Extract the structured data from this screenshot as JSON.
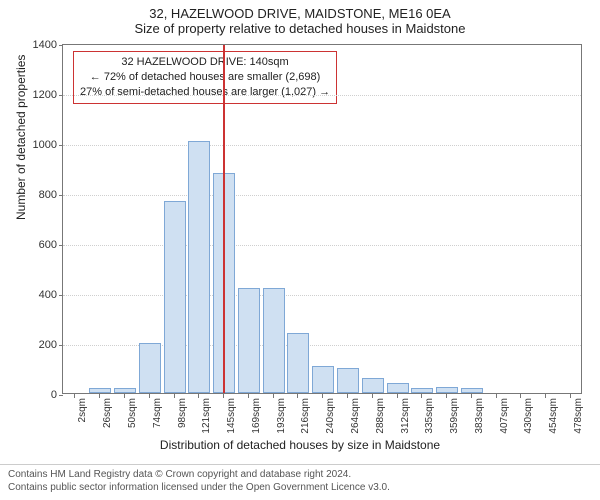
{
  "header": {
    "line1": "32, HAZELWOOD DRIVE, MAIDSTONE, ME16 0EA",
    "line2": "Size of property relative to detached houses in Maidstone"
  },
  "chart": {
    "type": "histogram",
    "background_color": "#ffffff",
    "grid_color": "#cfcfcf",
    "axis_color": "#777777",
    "bar_fill": "#cfe0f2",
    "bar_stroke": "#7fa8d6",
    "marker_color": "#cc3333",
    "ylabel": "Number of detached properties",
    "xlabel": "Distribution of detached houses by size in Maidstone",
    "ylim": [
      0,
      1400
    ],
    "ytick_step": 200,
    "yticks": [
      0,
      200,
      400,
      600,
      800,
      1000,
      1200,
      1400
    ],
    "xticks": [
      "2sqm",
      "26sqm",
      "50sqm",
      "74sqm",
      "98sqm",
      "121sqm",
      "145sqm",
      "169sqm",
      "193sqm",
      "216sqm",
      "240sqm",
      "264sqm",
      "288sqm",
      "312sqm",
      "335sqm",
      "359sqm",
      "383sqm",
      "407sqm",
      "430sqm",
      "454sqm",
      "478sqm"
    ],
    "bars": [
      {
        "x": 2,
        "value": 0
      },
      {
        "x": 26,
        "value": 20
      },
      {
        "x": 50,
        "value": 20
      },
      {
        "x": 74,
        "value": 200
      },
      {
        "x": 98,
        "value": 770
      },
      {
        "x": 121,
        "value": 1010
      },
      {
        "x": 145,
        "value": 880
      },
      {
        "x": 169,
        "value": 420
      },
      {
        "x": 193,
        "value": 420
      },
      {
        "x": 216,
        "value": 240
      },
      {
        "x": 240,
        "value": 110
      },
      {
        "x": 264,
        "value": 100
      },
      {
        "x": 288,
        "value": 60
      },
      {
        "x": 312,
        "value": 40
      },
      {
        "x": 335,
        "value": 20
      },
      {
        "x": 359,
        "value": 25
      },
      {
        "x": 383,
        "value": 20
      },
      {
        "x": 407,
        "value": 0
      },
      {
        "x": 430,
        "value": 0
      },
      {
        "x": 454,
        "value": 0
      },
      {
        "x": 478,
        "value": 0
      }
    ],
    "marker_x": 145,
    "annotation": {
      "line1": "32 HAZELWOOD DRIVE: 140sqm",
      "line2": "← 72% of detached houses are smaller (2,698)",
      "line3": "27% of semi-detached houses are larger (1,027) →",
      "border_color": "#cc3333"
    }
  },
  "footer": {
    "line1": "Contains HM Land Registry data © Crown copyright and database right 2024.",
    "line2": "Contains public sector information licensed under the Open Government Licence v3.0."
  }
}
